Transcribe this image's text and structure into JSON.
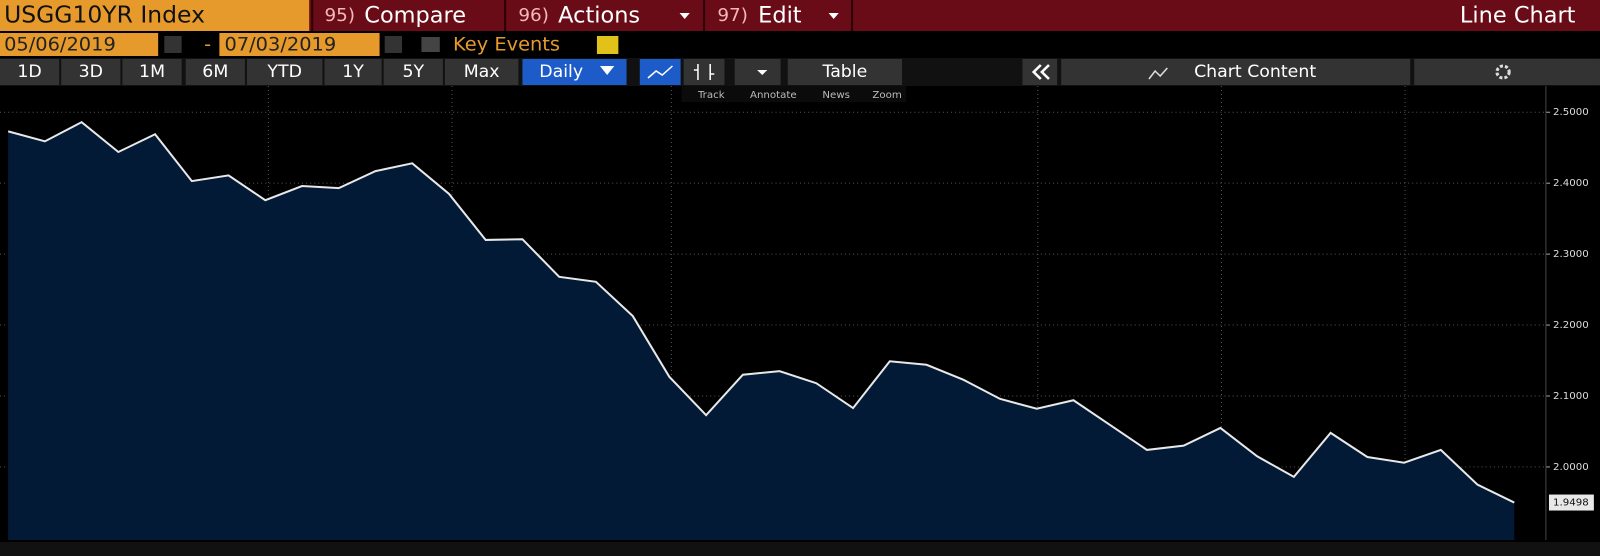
{
  "ui": {
    "ticker": "USGG10YR Index",
    "menu": [
      {
        "key": "95)",
        "label": "Compare"
      },
      {
        "key": "96)",
        "label": "Actions"
      },
      {
        "key": "97)",
        "label": "Edit"
      }
    ],
    "view": "Line Chart",
    "start_date": "05/06/2019",
    "date_sep": "-",
    "end_date": "07/03/2019",
    "key_events": "Key Events",
    "ranges": [
      "1D",
      "3D",
      "1M",
      "6M",
      "YTD",
      "1Y",
      "5Y",
      "Max"
    ],
    "frequency": "Daily",
    "table": "Table",
    "chart_content": "Chart Content",
    "tools": [
      "Track",
      "Annotate",
      "News",
      "Zoom"
    ]
  },
  "chart_data": {
    "type": "area",
    "color": "#e8e8e8",
    "fill": "#021a36",
    "values": [
      2.473,
      2.459,
      2.486,
      2.444,
      2.469,
      2.403,
      2.411,
      2.376,
      2.396,
      2.393,
      2.417,
      2.428,
      2.385,
      2.32,
      2.321,
      2.268,
      2.261,
      2.213,
      2.127,
      2.073,
      2.13,
      2.135,
      2.118,
      2.083,
      2.149,
      2.144,
      2.123,
      2.096,
      2.082,
      2.094,
      2.059,
      2.024,
      2.03,
      2.055,
      2.015,
      1.986,
      2.048,
      2.014,
      2.006,
      2.024,
      1.975,
      1.9498
    ],
    "value_labels": [
      null,
      null,
      null,
      null,
      null,
      null,
      null,
      null,
      null,
      null,
      null,
      null,
      null,
      null,
      null,
      null,
      null,
      null,
      null,
      null,
      null,
      null,
      null,
      null,
      null,
      null,
      null,
      null,
      null,
      null,
      null,
      null,
      null,
      null,
      null,
      null,
      null,
      null,
      null,
      null,
      null,
      "1.9498"
    ],
    "ylim": [
      1.897,
      2.537
    ],
    "yticks": [
      {
        "value": 2.0,
        "label": "2.0000"
      },
      {
        "value": 2.1,
        "label": "2.1000"
      },
      {
        "value": 2.2,
        "label": "2.2000"
      },
      {
        "value": 2.3,
        "label": "2.3000"
      },
      {
        "value": 2.4,
        "label": "2.4000"
      },
      {
        "value": 2.5,
        "label": "2.5000"
      }
    ],
    "grid": true,
    "axis_side": "right"
  }
}
